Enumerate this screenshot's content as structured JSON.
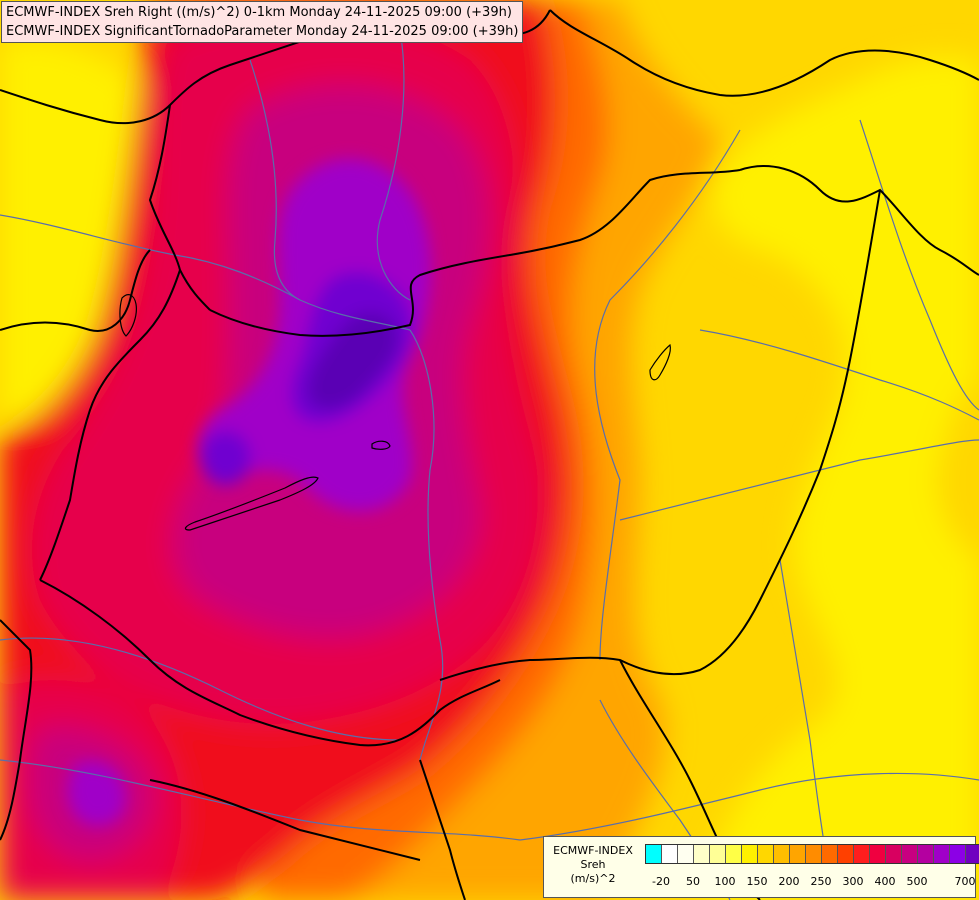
{
  "title": {
    "line1": "ECMWF-INDEX Sreh Right ((m/s)^2) 0-1km Monday 24-11-2025 09:00 (+39h)",
    "line2": "ECMWF-INDEX SignificantTornadoParameter Monday 24-11-2025 09:00 (+39h)"
  },
  "legend": {
    "source": "ECMWF-INDEX",
    "variable": "Sreh",
    "unit": "(m/s)^2",
    "colors": [
      "#00ffff",
      "#ffffff",
      "#fffff0",
      "#ffffc8",
      "#ffff96",
      "#ffff46",
      "#fff000",
      "#ffd700",
      "#ffbe00",
      "#ffa500",
      "#ff8c00",
      "#ff6a00",
      "#ff4000",
      "#ff1e1e",
      "#f00040",
      "#d80060",
      "#c80080",
      "#b400a0",
      "#a000c8",
      "#8c00e6",
      "#7000c0",
      "#5000a0",
      "#3c0096",
      "#1e006e",
      "#000082"
    ],
    "ticks": [
      "-20",
      "50",
      "100",
      "150",
      "200",
      "250",
      "300",
      "400",
      "500",
      "700"
    ]
  },
  "map_colors": {
    "light": "#ffffc8",
    "yellow": "#fff000",
    "gold": "#ffd700",
    "orange": "#ffa500",
    "dark_orange": "#ff6a00",
    "red": "#f00a1e",
    "crimson": "#e6004b",
    "magenta": "#c8007e",
    "purple": "#a000c8",
    "violet": "#7000d0",
    "indigo": "#5a00b4",
    "border": "#000000",
    "river": "#5a6eaa"
  }
}
